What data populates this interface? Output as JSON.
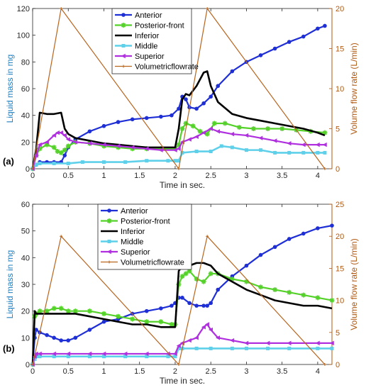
{
  "colors": {
    "anterior": "#1f2fd6",
    "posterior_front": "#55d22a",
    "inferior": "#000000",
    "middle": "#5fd0ea",
    "superior": "#b030e0",
    "volumetricflowrate": "#b8651e",
    "left_axis": "#1f7fbf",
    "right_axis": "#b05a12"
  },
  "icons": [
    "filled-circle-marker",
    "star-marker",
    "left-triangle-marker",
    "plus-marker"
  ],
  "chart_data": [
    {
      "type": "line",
      "panel_label": "(a)",
      "xlabel": "Time in sec.",
      "ylabel": "Liquid mass in mg",
      "y2label": "Volume flow rate (L/min)",
      "xlim": [
        0,
        4.2
      ],
      "ylim": [
        0,
        120
      ],
      "y2lim": [
        0,
        20
      ],
      "xticks": [
        0,
        0.5,
        1,
        1.5,
        2,
        2.5,
        3,
        3.5,
        4
      ],
      "xtick_labels": [
        "0",
        "0.5",
        "1",
        "1.5",
        "2",
        "2.5",
        "3",
        "3.5",
        "4"
      ],
      "yticks": [
        0,
        20,
        40,
        60,
        80,
        100,
        120
      ],
      "ytick_labels": [
        "0",
        "20",
        "40",
        "60",
        "80",
        "100",
        "120"
      ],
      "y2ticks": [
        0,
        5,
        10,
        15,
        20
      ],
      "y2tick_labels": [
        "0",
        "5",
        "10",
        "15",
        "20"
      ],
      "grid": false,
      "legend_position": "top-center",
      "series": [
        {
          "name": "Anterior",
          "key": "anterior",
          "axis": "left",
          "x": [
            0,
            0.05,
            0.1,
            0.2,
            0.3,
            0.4,
            0.45,
            0.5,
            0.6,
            0.8,
            1.0,
            1.2,
            1.4,
            1.6,
            1.8,
            1.95,
            2.05,
            2.1,
            2.15,
            2.2,
            2.3,
            2.4,
            2.5,
            2.6,
            2.8,
            3.0,
            3.2,
            3.4,
            3.6,
            3.8,
            4.0,
            4.1
          ],
          "y": [
            0,
            3,
            5,
            5,
            5,
            5,
            10,
            16,
            22,
            28,
            32,
            35,
            37,
            38,
            39,
            40,
            45,
            54,
            52,
            46,
            45,
            49,
            54,
            62,
            73,
            80,
            85,
            90,
            95,
            99,
            105,
            107
          ]
        },
        {
          "name": "Posterior-front",
          "key": "posterior_front",
          "axis": "left",
          "x": [
            0,
            0.05,
            0.1,
            0.2,
            0.3,
            0.35,
            0.4,
            0.45,
            0.5,
            0.6,
            0.8,
            1.0,
            1.2,
            1.4,
            1.6,
            1.8,
            2.0,
            2.05,
            2.1,
            2.15,
            2.25,
            2.35,
            2.45,
            2.55,
            2.7,
            2.9,
            3.1,
            3.3,
            3.5,
            3.7,
            3.9,
            4.1
          ],
          "y": [
            0,
            10,
            15,
            18,
            16,
            13,
            12,
            14,
            17,
            20,
            19,
            17,
            16,
            15,
            15,
            15,
            15,
            18,
            30,
            34,
            32,
            28,
            26,
            34,
            34,
            31,
            30,
            30,
            30,
            29,
            28,
            27
          ]
        },
        {
          "name": "Inferior",
          "key": "inferior",
          "axis": "left",
          "x": [
            0,
            0.05,
            0.1,
            0.2,
            0.3,
            0.4,
            0.45,
            0.5,
            0.6,
            0.8,
            1.0,
            1.2,
            1.4,
            1.6,
            1.8,
            2.0,
            2.05,
            2.1,
            2.15,
            2.2,
            2.3,
            2.4,
            2.45,
            2.5,
            2.6,
            2.8,
            3.0,
            3.2,
            3.4,
            3.6,
            3.8,
            4.0,
            4.1
          ],
          "y": [
            0,
            15,
            42,
            41,
            41,
            42,
            30,
            26,
            23,
            21,
            19,
            18,
            17,
            16,
            16,
            16,
            30,
            52,
            56,
            55,
            62,
            72,
            73,
            62,
            50,
            41,
            38,
            36,
            34,
            32,
            30,
            27,
            25
          ]
        },
        {
          "name": "Middle",
          "key": "middle",
          "axis": "left",
          "x": [
            0,
            0.05,
            0.1,
            0.3,
            0.5,
            0.7,
            1.0,
            1.3,
            1.6,
            1.9,
            2.0,
            2.05,
            2.1,
            2.3,
            2.5,
            2.65,
            2.8,
            3.0,
            3.2,
            3.4,
            3.6,
            3.8,
            4.0,
            4.1
          ],
          "y": [
            0,
            3,
            4,
            4,
            4,
            5,
            5,
            5,
            6,
            6,
            6,
            6,
            12,
            13,
            13,
            17,
            16,
            14,
            14,
            12,
            12,
            12,
            12,
            12
          ]
        },
        {
          "name": "Superior",
          "key": "superior",
          "axis": "left",
          "x": [
            0,
            0.05,
            0.1,
            0.2,
            0.3,
            0.35,
            0.4,
            0.45,
            0.5,
            0.6,
            0.8,
            1.0,
            1.2,
            1.4,
            1.6,
            1.8,
            2.0,
            2.05,
            2.1,
            2.2,
            2.3,
            2.4,
            2.5,
            2.6,
            2.8,
            3.0,
            3.2,
            3.4,
            3.6,
            3.8,
            4.0,
            4.1
          ],
          "y": [
            0,
            10,
            18,
            20,
            25,
            27,
            27,
            25,
            22,
            20,
            19,
            18,
            17,
            16,
            15,
            14,
            14,
            15,
            20,
            22,
            24,
            27,
            30,
            28,
            26,
            25,
            23,
            21,
            19,
            18,
            18,
            18
          ]
        },
        {
          "name": "Volumetricflowrate",
          "key": "volumetricflowrate",
          "axis": "right",
          "x": [
            0,
            0.4,
            2.05,
            2.45,
            4.1
          ],
          "y": [
            0,
            20,
            0,
            20,
            0
          ]
        }
      ]
    },
    {
      "type": "line",
      "panel_label": "(b)",
      "xlabel": "Time in sec.",
      "ylabel": "Liquid mass in mg",
      "y2label": "Volume flow rate (L/min)",
      "xlim": [
        0,
        4.2
      ],
      "ylim": [
        0,
        60
      ],
      "y2lim": [
        0,
        25
      ],
      "xticks": [
        0,
        0.5,
        1,
        1.5,
        2,
        2.5,
        3,
        3.5,
        4
      ],
      "xtick_labels": [
        "0",
        "0.5",
        "1",
        "1.5",
        "2",
        "2.5",
        "3",
        "3.5",
        "4"
      ],
      "yticks": [
        0,
        10,
        20,
        30,
        40,
        50,
        60
      ],
      "ytick_labels": [
        "0",
        "10",
        "20",
        "30",
        "40",
        "50",
        "60"
      ],
      "y2ticks": [
        0,
        5,
        10,
        15,
        20,
        25
      ],
      "y2tick_labels": [
        "0",
        "5",
        "10",
        "15",
        "20",
        "25"
      ],
      "grid": false,
      "legend_position": "top-center",
      "series": [
        {
          "name": "Anterior",
          "key": "anterior",
          "axis": "left",
          "x": [
            0,
            0.03,
            0.05,
            0.1,
            0.2,
            0.3,
            0.4,
            0.5,
            0.6,
            0.8,
            1.0,
            1.2,
            1.4,
            1.6,
            1.8,
            1.95,
            2.0,
            2.05,
            2.1,
            2.2,
            2.3,
            2.4,
            2.45,
            2.5,
            2.6,
            2.8,
            3.0,
            3.2,
            3.4,
            3.6,
            3.8,
            4.0,
            4.2
          ],
          "y": [
            0,
            10,
            13,
            12,
            11,
            10,
            9,
            9,
            10,
            13,
            16,
            17,
            19,
            20,
            21,
            22,
            23,
            25,
            25,
            23,
            22,
            22,
            22,
            23,
            28,
            33,
            37,
            41,
            44,
            47,
            49,
            51,
            52
          ]
        },
        {
          "name": "Posterior-front",
          "key": "posterior_front",
          "axis": "left",
          "x": [
            0,
            0.03,
            0.05,
            0.1,
            0.2,
            0.3,
            0.4,
            0.5,
            0.6,
            0.8,
            1.0,
            1.2,
            1.4,
            1.6,
            1.8,
            1.95,
            2.0,
            2.05,
            2.1,
            2.15,
            2.2,
            2.3,
            2.4,
            2.5,
            2.6,
            2.8,
            3.0,
            3.2,
            3.4,
            3.6,
            3.8,
            4.0,
            4.2
          ],
          "y": [
            0,
            18,
            19,
            20,
            20,
            21,
            21,
            20,
            20,
            20,
            19,
            18,
            17,
            16,
            16,
            15,
            15,
            30,
            33,
            34,
            35,
            32,
            31,
            34,
            34,
            32,
            31,
            29,
            28,
            27,
            26,
            25,
            24
          ]
        },
        {
          "name": "Inferior",
          "key": "inferior",
          "axis": "left",
          "x": [
            0,
            0.03,
            0.05,
            0.1,
            0.2,
            0.3,
            0.4,
            0.5,
            0.6,
            0.8,
            1.0,
            1.2,
            1.4,
            1.6,
            1.8,
            1.95,
            2.0,
            2.05,
            2.1,
            2.2,
            2.3,
            2.4,
            2.5,
            2.6,
            2.8,
            3.0,
            3.2,
            3.4,
            3.6,
            3.8,
            4.0,
            4.2
          ],
          "y": [
            0,
            20,
            19,
            19,
            19,
            19,
            19,
            19,
            19,
            18,
            17,
            16,
            15,
            15,
            14,
            14,
            14,
            35,
            37,
            37,
            38,
            38,
            37,
            34,
            31,
            28,
            26,
            24,
            23,
            22,
            22,
            21
          ]
        },
        {
          "name": "Middle",
          "key": "middle",
          "axis": "left",
          "x": [
            0,
            0.03,
            0.05,
            0.1,
            0.3,
            0.5,
            0.8,
            1.0,
            1.3,
            1.6,
            1.9,
            2.0,
            2.05,
            2.1,
            2.3,
            2.5,
            2.8,
            3.0,
            3.3,
            3.6,
            4.0,
            4.2
          ],
          "y": [
            0,
            2,
            3,
            3,
            3,
            3,
            3,
            3,
            3,
            3,
            3,
            3,
            6,
            6,
            6,
            6,
            6,
            6,
            6,
            6,
            6,
            6
          ]
        },
        {
          "name": "Superior",
          "key": "superior",
          "axis": "left",
          "x": [
            0,
            0.03,
            0.05,
            0.1,
            0.3,
            0.5,
            0.8,
            1.0,
            1.3,
            1.6,
            1.9,
            2.0,
            2.05,
            2.1,
            2.2,
            2.3,
            2.4,
            2.45,
            2.5,
            2.6,
            2.8,
            3.0,
            3.3,
            3.6,
            4.0,
            4.2
          ],
          "y": [
            0,
            3,
            4,
            4,
            4,
            4,
            4,
            4,
            4,
            4,
            4,
            4,
            7,
            8,
            9,
            10,
            14,
            15,
            13,
            10,
            9,
            8,
            8,
            8,
            8,
            8
          ]
        },
        {
          "name": "Volumetricflowrate",
          "key": "volumetricflowrate",
          "axis": "right",
          "x": [
            0,
            0.4,
            2.05,
            2.45,
            4.1
          ],
          "y": [
            0,
            20,
            0,
            20,
            0
          ]
        }
      ]
    }
  ]
}
